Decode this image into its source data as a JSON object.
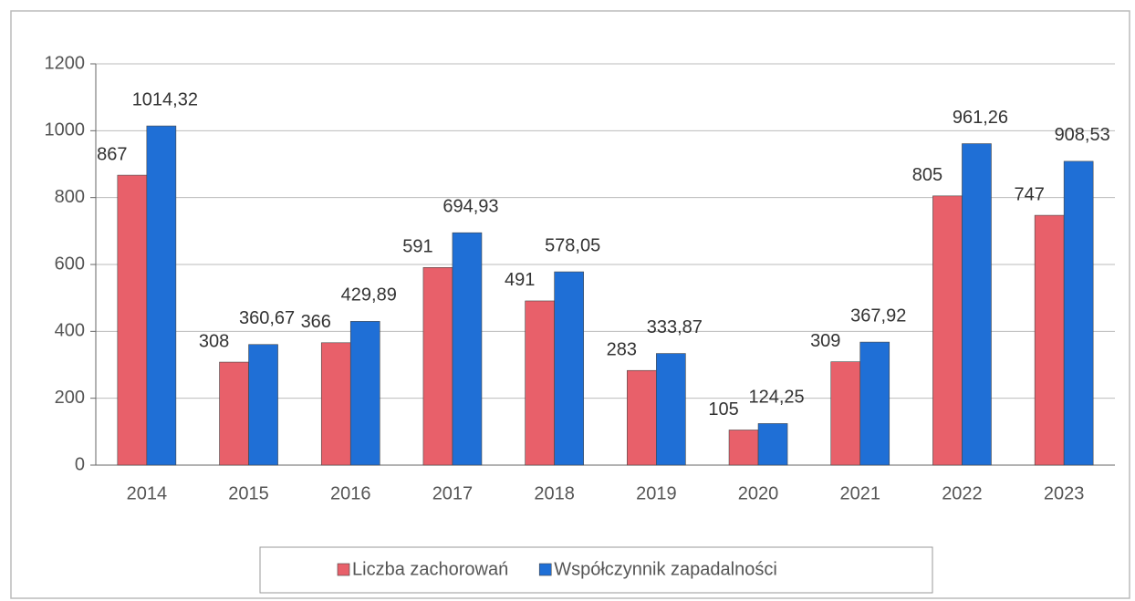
{
  "chart_data": {
    "type": "bar",
    "categories": [
      "2014",
      "2015",
      "2016",
      "2017",
      "2018",
      "2019",
      "2020",
      "2021",
      "2022",
      "2023"
    ],
    "series": [
      {
        "name": "Liczba zachorowań",
        "color": "#e8606a",
        "values": [
          867,
          308,
          366,
          591,
          491,
          283,
          105,
          309,
          805,
          747
        ]
      },
      {
        "name": "Współczynnik zapadalności",
        "color": "#1f6fd6",
        "values": [
          1014.32,
          360.67,
          429.89,
          694.93,
          578.05,
          333.87,
          124.25,
          367.92,
          961.26,
          908.53
        ],
        "value_labels": [
          "1014,32",
          "360,67",
          "429,89",
          "694,93",
          "578,05",
          "333,87",
          "124,25",
          "367,92",
          "961,26",
          "908,53"
        ]
      }
    ],
    "ylim": [
      0,
      1200
    ],
    "yticks": [
      0,
      200,
      400,
      600,
      800,
      1000,
      1200
    ],
    "grid": true,
    "legend": "bottom"
  }
}
